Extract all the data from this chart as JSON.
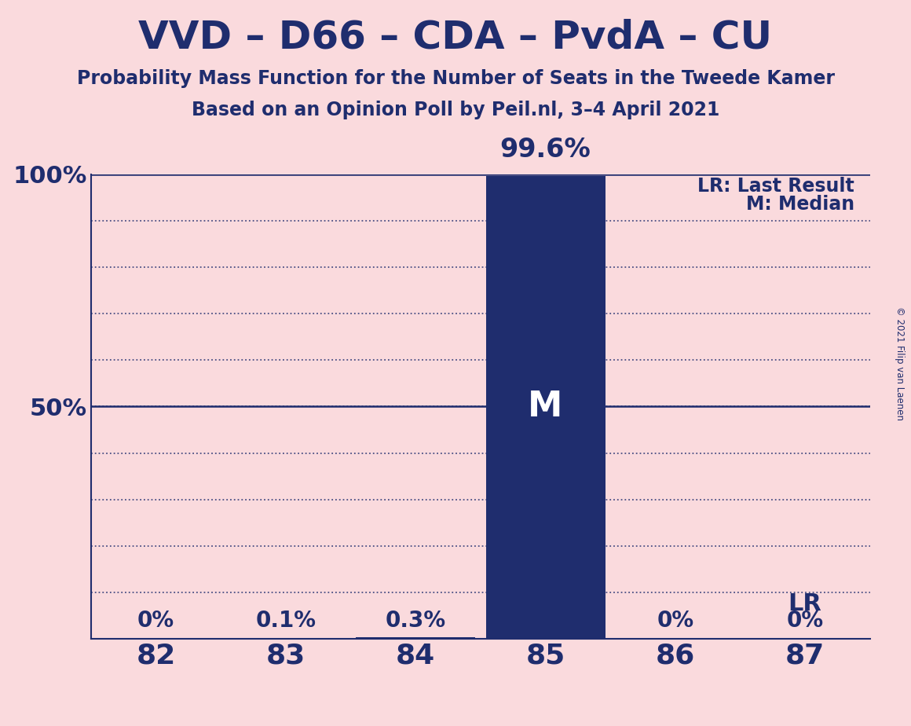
{
  "title": "VVD – D66 – CDA – PvdA – CU",
  "subtitle1": "Probability Mass Function for the Number of Seats in the Tweede Kamer",
  "subtitle2": "Based on an Opinion Poll by Peil.nl, 3–4 April 2021",
  "copyright": "© 2021 Filip van Laenen",
  "background_color": "#FADADD",
  "bar_color": "#1F2D6E",
  "text_color": "#1F2D6E",
  "seats": [
    82,
    83,
    84,
    85,
    86,
    87
  ],
  "probabilities": [
    0.0,
    0.001,
    0.003,
    0.996,
    0.0,
    0.0
  ],
  "bar_labels": [
    "0%",
    "0.1%",
    "0.3%",
    "",
    "0%",
    "0%"
  ],
  "median_seat": 85,
  "median_label": "M",
  "lr_seat": 87,
  "lr_label": "LR",
  "legend_lr": "LR: Last Result",
  "legend_m": "M: Median",
  "yticks": [
    0.0,
    0.1,
    0.2,
    0.3,
    0.4,
    0.5,
    0.6,
    0.7,
    0.8,
    0.9,
    1.0
  ],
  "ytick_labels": [
    "",
    "",
    "",
    "",
    "",
    "50%",
    "",
    "",
    "",
    "",
    "100%"
  ],
  "ylim": [
    0,
    1.0
  ],
  "xlim": [
    81.5,
    87.5
  ],
  "grid_color": "#1F2D6E",
  "axis_color": "#1F2D6E",
  "bar_width": 0.92
}
